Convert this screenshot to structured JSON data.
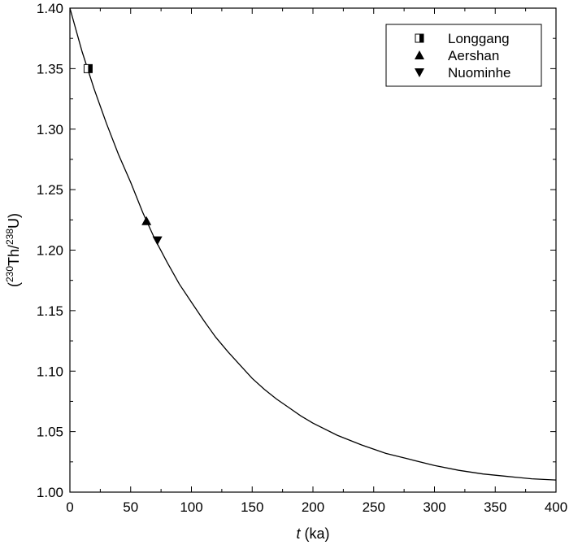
{
  "chart_data": {
    "type": "scatter",
    "xlabel_italic": "t",
    "xlabel_rest": " (ka)",
    "ylabel_parts": {
      "open": "(",
      "sup1": "230",
      "mid": "Th/",
      "sup2": "238",
      "end": "U)"
    },
    "xlim": [
      0,
      400
    ],
    "ylim": [
      1.0,
      1.4
    ],
    "xticks": [
      0,
      50,
      100,
      150,
      200,
      250,
      300,
      350,
      400
    ],
    "yticks": [
      1.0,
      1.05,
      1.1,
      1.15,
      1.2,
      1.25,
      1.3,
      1.35,
      1.4
    ],
    "ytick_labels": [
      "1.00",
      "1.05",
      "1.10",
      "1.15",
      "1.20",
      "1.25",
      "1.30",
      "1.35",
      "1.40"
    ],
    "grid": false,
    "legend_position": "top-right",
    "curve": {
      "x": [
        0,
        10,
        20,
        30,
        40,
        50,
        60,
        70,
        80,
        90,
        100,
        110,
        120,
        130,
        140,
        150,
        160,
        170,
        180,
        190,
        200,
        220,
        240,
        260,
        280,
        300,
        320,
        340,
        360,
        380,
        400
      ],
      "y": [
        1.4,
        1.364,
        1.333,
        1.305,
        1.279,
        1.256,
        1.231,
        1.209,
        1.19,
        1.172,
        1.157,
        1.142,
        1.128,
        1.116,
        1.105,
        1.094,
        1.085,
        1.077,
        1.07,
        1.063,
        1.057,
        1.047,
        1.039,
        1.032,
        1.027,
        1.022,
        1.018,
        1.015,
        1.013,
        1.011,
        1.01
      ]
    },
    "series": [
      {
        "name": "Longgang",
        "marker": "half-filled-square",
        "x": [
          15
        ],
        "y": [
          1.35
        ]
      },
      {
        "name": "Aershan",
        "marker": "triangle-up",
        "x": [
          63
        ],
        "y": [
          1.224
        ]
      },
      {
        "name": "Nuominhe",
        "marker": "triangle-down",
        "x": [
          72
        ],
        "y": [
          1.208
        ]
      }
    ]
  }
}
